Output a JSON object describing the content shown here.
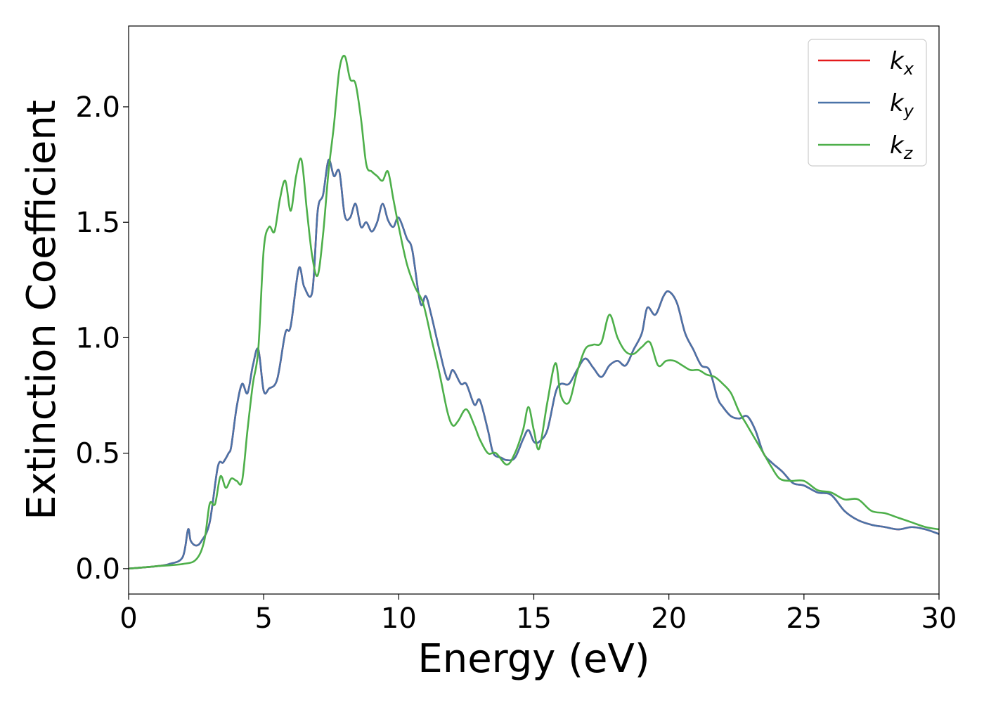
{
  "chart_data": {
    "type": "line",
    "title": "",
    "xlabel": "Energy (eV)",
    "ylabel": "Extinction Coefficient",
    "xlim": [
      0,
      30
    ],
    "ylim": [
      -0.11,
      2.35
    ],
    "xticks": [
      0,
      5,
      10,
      15,
      20,
      25,
      30
    ],
    "xtick_labels": [
      "0",
      "5",
      "10",
      "15",
      "20",
      "25",
      "30"
    ],
    "yticks": [
      0.0,
      0.5,
      1.0,
      1.5,
      2.0
    ],
    "ytick_labels": [
      "0.0",
      "0.5",
      "1.0",
      "1.5",
      "2.0"
    ],
    "grid": false,
    "legend_position": "top-right",
    "series": [
      {
        "name": "k_x",
        "label_base": "k",
        "label_sub": "x",
        "color": "#e41a1c",
        "x": [
          0,
          1,
          1.5,
          2,
          2.2,
          2.3,
          2.5,
          2.7,
          3,
          3.3,
          3.5,
          3.7,
          3.8,
          4,
          4.2,
          4.4,
          4.6,
          4.8,
          5,
          5.2,
          5.5,
          5.8,
          6,
          6.3,
          6.5,
          6.8,
          7,
          7.2,
          7.4,
          7.6,
          7.8,
          8,
          8.2,
          8.4,
          8.6,
          8.8,
          9,
          9.2,
          9.4,
          9.6,
          9.8,
          10,
          10.3,
          10.5,
          10.8,
          11,
          11.2,
          11.5,
          11.8,
          12,
          12.3,
          12.5,
          12.8,
          13,
          13.3,
          13.5,
          13.8,
          14,
          14.3,
          14.6,
          14.8,
          15,
          15.2,
          15.5,
          15.8,
          16,
          16.3,
          16.6,
          16.9,
          17.2,
          17.5,
          17.8,
          18.1,
          18.4,
          18.7,
          19,
          19.2,
          19.5,
          19.8,
          20,
          20.3,
          20.6,
          20.9,
          21.2,
          21.5,
          21.8,
          22,
          22.3,
          22.6,
          22.9,
          23.2,
          23.5,
          23.8,
          24.2,
          24.6,
          25,
          25.5,
          26,
          26.5,
          27,
          27.5,
          28,
          28.5,
          29,
          29.5,
          30
        ],
        "y": [
          0,
          0.01,
          0.02,
          0.05,
          0.17,
          0.12,
          0.1,
          0.12,
          0.2,
          0.44,
          0.46,
          0.5,
          0.53,
          0.7,
          0.8,
          0.76,
          0.88,
          0.95,
          0.77,
          0.78,
          0.82,
          1.02,
          1.05,
          1.3,
          1.22,
          1.2,
          1.55,
          1.62,
          1.77,
          1.7,
          1.72,
          1.53,
          1.52,
          1.58,
          1.48,
          1.5,
          1.46,
          1.5,
          1.58,
          1.51,
          1.48,
          1.52,
          1.43,
          1.38,
          1.15,
          1.18,
          1.1,
          0.95,
          0.82,
          0.86,
          0.8,
          0.8,
          0.71,
          0.73,
          0.6,
          0.5,
          0.48,
          0.47,
          0.48,
          0.56,
          0.6,
          0.55,
          0.55,
          0.6,
          0.76,
          0.8,
          0.8,
          0.86,
          0.91,
          0.87,
          0.83,
          0.88,
          0.9,
          0.88,
          0.95,
          1.02,
          1.13,
          1.1,
          1.18,
          1.2,
          1.15,
          1.02,
          0.95,
          0.88,
          0.86,
          0.74,
          0.7,
          0.66,
          0.65,
          0.66,
          0.6,
          0.5,
          0.46,
          0.42,
          0.37,
          0.36,
          0.33,
          0.32,
          0.25,
          0.21,
          0.19,
          0.18,
          0.17,
          0.18,
          0.17,
          0.15
        ]
      },
      {
        "name": "k_y",
        "label_base": "k",
        "label_sub": "y",
        "color": "#4a73a8",
        "x": [
          0,
          1,
          1.5,
          2,
          2.2,
          2.3,
          2.5,
          2.7,
          3,
          3.3,
          3.5,
          3.7,
          3.8,
          4,
          4.2,
          4.4,
          4.6,
          4.8,
          5,
          5.2,
          5.5,
          5.8,
          6,
          6.3,
          6.5,
          6.8,
          7,
          7.2,
          7.4,
          7.6,
          7.8,
          8,
          8.2,
          8.4,
          8.6,
          8.8,
          9,
          9.2,
          9.4,
          9.6,
          9.8,
          10,
          10.3,
          10.5,
          10.8,
          11,
          11.2,
          11.5,
          11.8,
          12,
          12.3,
          12.5,
          12.8,
          13,
          13.3,
          13.5,
          13.8,
          14,
          14.3,
          14.6,
          14.8,
          15,
          15.2,
          15.5,
          15.8,
          16,
          16.3,
          16.6,
          16.9,
          17.2,
          17.5,
          17.8,
          18.1,
          18.4,
          18.7,
          19,
          19.2,
          19.5,
          19.8,
          20,
          20.3,
          20.6,
          20.9,
          21.2,
          21.5,
          21.8,
          22,
          22.3,
          22.6,
          22.9,
          23.2,
          23.5,
          23.8,
          24.2,
          24.6,
          25,
          25.5,
          26,
          26.5,
          27,
          27.5,
          28,
          28.5,
          29,
          29.5,
          30
        ],
        "y": [
          0,
          0.01,
          0.02,
          0.05,
          0.17,
          0.12,
          0.1,
          0.12,
          0.2,
          0.44,
          0.46,
          0.5,
          0.53,
          0.7,
          0.8,
          0.76,
          0.88,
          0.95,
          0.77,
          0.78,
          0.82,
          1.02,
          1.05,
          1.3,
          1.22,
          1.2,
          1.55,
          1.62,
          1.77,
          1.7,
          1.72,
          1.53,
          1.52,
          1.58,
          1.48,
          1.5,
          1.46,
          1.5,
          1.58,
          1.51,
          1.48,
          1.52,
          1.43,
          1.38,
          1.15,
          1.18,
          1.1,
          0.95,
          0.82,
          0.86,
          0.8,
          0.8,
          0.71,
          0.73,
          0.6,
          0.5,
          0.48,
          0.47,
          0.48,
          0.56,
          0.6,
          0.55,
          0.55,
          0.6,
          0.76,
          0.8,
          0.8,
          0.86,
          0.91,
          0.87,
          0.83,
          0.88,
          0.9,
          0.88,
          0.95,
          1.02,
          1.13,
          1.1,
          1.18,
          1.2,
          1.15,
          1.02,
          0.95,
          0.88,
          0.86,
          0.74,
          0.7,
          0.66,
          0.65,
          0.66,
          0.6,
          0.5,
          0.46,
          0.42,
          0.37,
          0.36,
          0.33,
          0.32,
          0.25,
          0.21,
          0.19,
          0.18,
          0.17,
          0.18,
          0.17,
          0.15
        ]
      },
      {
        "name": "k_z",
        "label_base": "k",
        "label_sub": "z",
        "color": "#4daf4a",
        "x": [
          0,
          1,
          2,
          2.5,
          2.8,
          3,
          3.2,
          3.4,
          3.6,
          3.8,
          4,
          4.2,
          4.4,
          4.6,
          4.8,
          5,
          5.2,
          5.4,
          5.6,
          5.8,
          6,
          6.2,
          6.4,
          6.6,
          6.8,
          7,
          7.2,
          7.4,
          7.6,
          7.8,
          8,
          8.2,
          8.4,
          8.6,
          8.8,
          9,
          9.2,
          9.4,
          9.6,
          9.8,
          10,
          10.3,
          10.6,
          10.9,
          11.2,
          11.5,
          11.8,
          12,
          12.2,
          12.5,
          12.8,
          13,
          13.3,
          13.6,
          14,
          14.3,
          14.6,
          14.8,
          15,
          15.2,
          15.5,
          15.8,
          16,
          16.3,
          16.6,
          16.9,
          17.2,
          17.5,
          17.8,
          18.1,
          18.4,
          18.7,
          19,
          19.3,
          19.6,
          19.9,
          20.2,
          20.5,
          20.8,
          21.1,
          21.4,
          21.7,
          22,
          22.3,
          22.6,
          22.9,
          23.2,
          23.5,
          23.8,
          24.1,
          24.5,
          25,
          25.5,
          26,
          26.5,
          27,
          27.5,
          28,
          28.5,
          29,
          29.5,
          30
        ],
        "y": [
          0,
          0.01,
          0.02,
          0.04,
          0.12,
          0.28,
          0.28,
          0.4,
          0.35,
          0.39,
          0.38,
          0.38,
          0.6,
          0.8,
          0.95,
          1.38,
          1.48,
          1.46,
          1.6,
          1.68,
          1.55,
          1.7,
          1.77,
          1.55,
          1.35,
          1.27,
          1.45,
          1.72,
          1.92,
          2.16,
          2.22,
          2.12,
          2.1,
          1.95,
          1.75,
          1.72,
          1.7,
          1.68,
          1.72,
          1.6,
          1.48,
          1.32,
          1.22,
          1.15,
          1.0,
          0.85,
          0.68,
          0.62,
          0.64,
          0.69,
          0.62,
          0.56,
          0.5,
          0.5,
          0.45,
          0.5,
          0.6,
          0.7,
          0.6,
          0.52,
          0.72,
          0.89,
          0.75,
          0.72,
          0.85,
          0.95,
          0.97,
          0.98,
          1.1,
          1.0,
          0.94,
          0.93,
          0.96,
          0.98,
          0.88,
          0.9,
          0.9,
          0.88,
          0.86,
          0.86,
          0.84,
          0.83,
          0.8,
          0.76,
          0.68,
          0.62,
          0.56,
          0.5,
          0.44,
          0.39,
          0.38,
          0.38,
          0.34,
          0.33,
          0.3,
          0.3,
          0.25,
          0.24,
          0.22,
          0.2,
          0.18,
          0.17
        ]
      }
    ]
  }
}
